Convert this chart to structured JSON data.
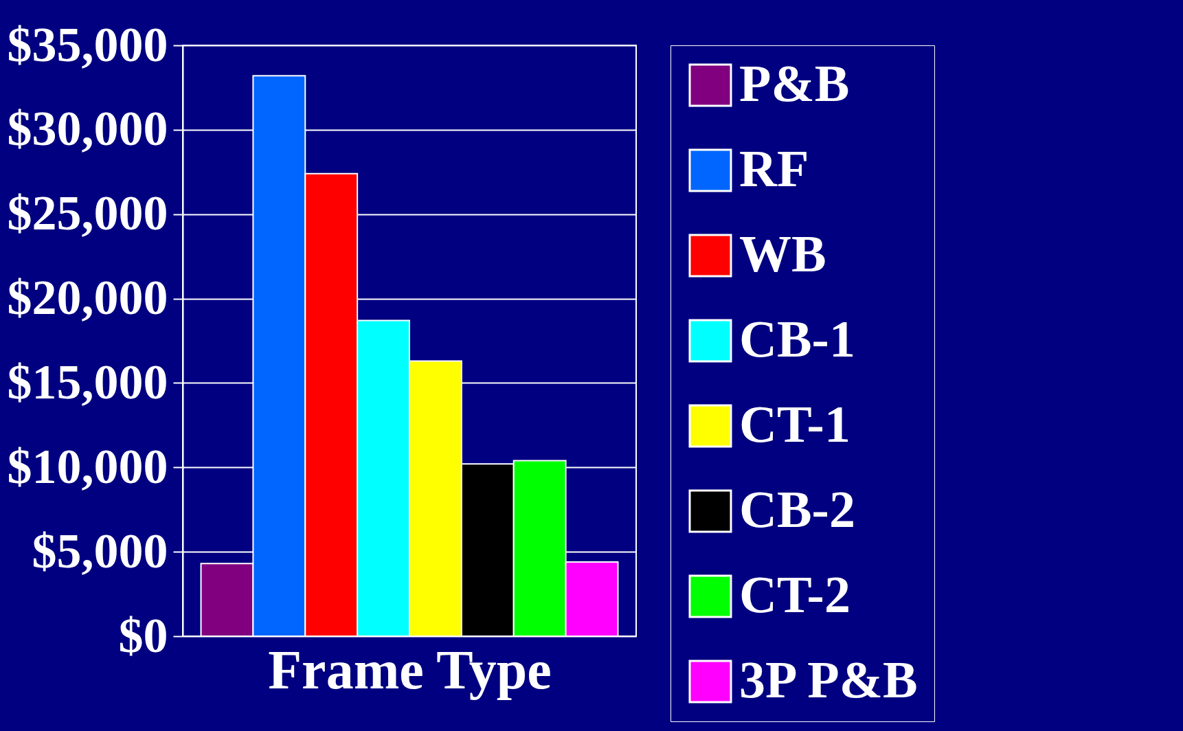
{
  "chart_data": {
    "type": "bar",
    "xlabel": "Frame Type",
    "categories": [
      null,
      null,
      null,
      null,
      null,
      null,
      null,
      null
    ],
    "series": [
      {
        "name": "P&B",
        "color": "#800080",
        "values": [
          4300,
          null,
          null,
          null,
          null,
          null,
          null,
          null
        ]
      },
      {
        "name": "RF",
        "color": "#0066ff",
        "values": [
          null,
          33200,
          null,
          null,
          null,
          null,
          null,
          null
        ]
      },
      {
        "name": "WB",
        "color": "#ff0000",
        "values": [
          null,
          null,
          27400,
          null,
          null,
          null,
          null,
          null
        ]
      },
      {
        "name": "CB-1",
        "color": "#00ffff",
        "values": [
          null,
          null,
          null,
          18700,
          null,
          null,
          null,
          null
        ]
      },
      {
        "name": "CT-1",
        "color": "#ffff00",
        "values": [
          null,
          null,
          null,
          null,
          16300,
          null,
          null,
          null
        ]
      },
      {
        "name": "CB-2",
        "color": "#000000",
        "values": [
          null,
          null,
          null,
          null,
          null,
          10200,
          null,
          null
        ]
      },
      {
        "name": "CT-2",
        "color": "#00ff00",
        "values": [
          null,
          null,
          null,
          null,
          null,
          null,
          10400,
          null
        ]
      },
      {
        "name": "3P P&B",
        "color": "#ff00ff",
        "values": [
          null,
          null,
          null,
          null,
          null,
          null,
          null,
          4400
        ]
      }
    ],
    "ylim": [
      0,
      35000
    ],
    "yticks": [
      {
        "value": 0,
        "label": "$0"
      },
      {
        "value": 5000,
        "label": "$5,000"
      },
      {
        "value": 10000,
        "label": "$10,000"
      },
      {
        "value": 15000,
        "label": "$15,000"
      },
      {
        "value": 20000,
        "label": "$20,000"
      },
      {
        "value": 25000,
        "label": "$25,000"
      },
      {
        "value": 30000,
        "label": "$30,000"
      },
      {
        "value": 35000,
        "label": "$35,000"
      }
    ],
    "grid": "y",
    "legend": "right"
  }
}
